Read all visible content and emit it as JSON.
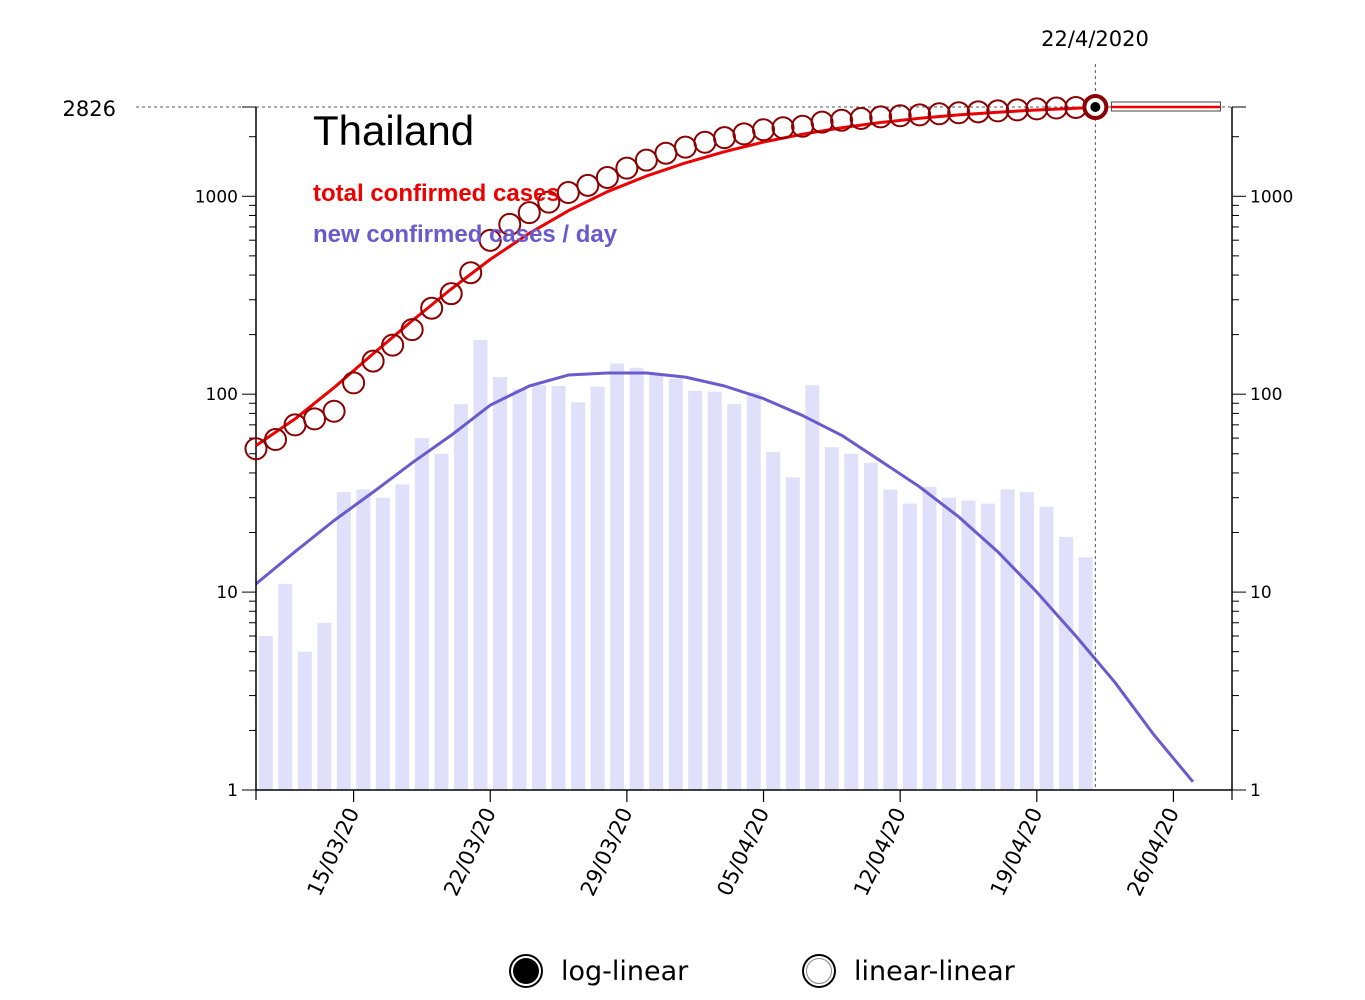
{
  "chart_data": {
    "type": "bar",
    "title": "Thailand",
    "legend": [
      {
        "label": "total confirmed cases",
        "color": "#ee0000"
      },
      {
        "label": "new confirmed cases / day",
        "color": "#6a5acd"
      }
    ],
    "y_scale": "log",
    "ylim": [
      1,
      2826
    ],
    "y_ticks": [
      "1",
      "10",
      "100",
      "1000"
    ],
    "x_tick_labels": [
      "15/03/20",
      "22/03/20",
      "29/03/20",
      "05/04/20",
      "12/04/20",
      "19/04/20",
      "26/04/20"
    ],
    "x_tick_dates": [
      "2020-03-15",
      "2020-03-22",
      "2020-03-29",
      "2020-04-05",
      "2020-04-12",
      "2020-04-19",
      "2020-04-26"
    ],
    "xlim": [
      "2020-03-10",
      "2020-04-29"
    ],
    "marker_date_label": "22/4/2020",
    "marker_date": "2020-04-22",
    "marker_value_label": "2826",
    "marker_value": 2826,
    "series": [
      {
        "name": "total confirmed cases",
        "kind": "points",
        "color": "#8b0000",
        "x": [
          "2020-03-10",
          "2020-03-11",
          "2020-03-12",
          "2020-03-13",
          "2020-03-14",
          "2020-03-15",
          "2020-03-16",
          "2020-03-17",
          "2020-03-18",
          "2020-03-19",
          "2020-03-20",
          "2020-03-21",
          "2020-03-22",
          "2020-03-23",
          "2020-03-24",
          "2020-03-25",
          "2020-03-26",
          "2020-03-27",
          "2020-03-28",
          "2020-03-29",
          "2020-03-30",
          "2020-03-31",
          "2020-04-01",
          "2020-04-02",
          "2020-04-03",
          "2020-04-04",
          "2020-04-05",
          "2020-04-06",
          "2020-04-07",
          "2020-04-08",
          "2020-04-09",
          "2020-04-10",
          "2020-04-11",
          "2020-04-12",
          "2020-04-13",
          "2020-04-14",
          "2020-04-15",
          "2020-04-16",
          "2020-04-17",
          "2020-04-18",
          "2020-04-19",
          "2020-04-20",
          "2020-04-21",
          "2020-04-22"
        ],
        "values": [
          53,
          59,
          70,
          75,
          82,
          114,
          147,
          177,
          212,
          272,
          322,
          411,
          599,
          721,
          827,
          934,
          1045,
          1136,
          1245,
          1388,
          1524,
          1651,
          1771,
          1875,
          1978,
          2067,
          2169,
          2220,
          2258,
          2369,
          2423,
          2473,
          2518,
          2551,
          2579,
          2613,
          2643,
          2672,
          2700,
          2733,
          2765,
          2792,
          2811,
          2826
        ]
      },
      {
        "name": "total confirmed cases",
        "kind": "fit-line",
        "color": "#ee0000",
        "x": [
          "2020-03-10",
          "2020-03-12",
          "2020-03-14",
          "2020-03-16",
          "2020-03-18",
          "2020-03-20",
          "2020-03-22",
          "2020-03-24",
          "2020-03-26",
          "2020-03-28",
          "2020-03-30",
          "2020-04-01",
          "2020-04-03",
          "2020-04-05",
          "2020-04-07",
          "2020-04-09",
          "2020-04-11",
          "2020-04-13",
          "2020-04-15",
          "2020-04-17",
          "2020-04-19",
          "2020-04-21",
          "2020-04-22",
          "2020-04-28"
        ],
        "values": [
          55,
          75,
          108,
          160,
          235,
          340,
          480,
          650,
          845,
          1055,
          1265,
          1475,
          1680,
          1880,
          2060,
          2220,
          2360,
          2480,
          2580,
          2660,
          2730,
          2785,
          2810,
          2826
        ]
      },
      {
        "name": "new confirmed cases / day",
        "kind": "bars",
        "color": "#e0e0fa",
        "x": [
          "2020-03-11",
          "2020-03-12",
          "2020-03-13",
          "2020-03-14",
          "2020-03-15",
          "2020-03-16",
          "2020-03-17",
          "2020-03-18",
          "2020-03-19",
          "2020-03-20",
          "2020-03-21",
          "2020-03-22",
          "2020-03-23",
          "2020-03-24",
          "2020-03-25",
          "2020-03-26",
          "2020-03-27",
          "2020-03-28",
          "2020-03-29",
          "2020-03-30",
          "2020-03-31",
          "2020-04-01",
          "2020-04-02",
          "2020-04-03",
          "2020-04-04",
          "2020-04-05",
          "2020-04-06",
          "2020-04-07",
          "2020-04-08",
          "2020-04-09",
          "2020-04-10",
          "2020-04-11",
          "2020-04-12",
          "2020-04-13",
          "2020-04-14",
          "2020-04-15",
          "2020-04-16",
          "2020-04-17",
          "2020-04-18",
          "2020-04-19",
          "2020-04-20",
          "2020-04-21",
          "2020-04-22"
        ],
        "values": [
          6,
          11,
          5,
          7,
          32,
          33,
          30,
          35,
          60,
          50,
          89,
          188,
          122,
          106,
          111,
          110,
          91,
          109,
          143,
          136,
          127,
          120,
          104,
          103,
          89,
          102,
          51,
          38,
          111,
          54,
          50,
          45,
          33,
          28,
          34,
          30,
          29,
          28,
          33,
          32,
          27,
          19,
          15
        ]
      },
      {
        "name": "new confirmed cases / day",
        "kind": "fit-line",
        "color": "#6a5acd",
        "x": [
          "2020-03-10",
          "2020-03-12",
          "2020-03-14",
          "2020-03-16",
          "2020-03-18",
          "2020-03-20",
          "2020-03-22",
          "2020-03-24",
          "2020-03-26",
          "2020-03-28",
          "2020-03-30",
          "2020-04-01",
          "2020-04-03",
          "2020-04-05",
          "2020-04-07",
          "2020-04-09",
          "2020-04-11",
          "2020-04-13",
          "2020-04-15",
          "2020-04-17",
          "2020-04-19",
          "2020-04-21",
          "2020-04-23",
          "2020-04-25",
          "2020-04-27"
        ],
        "values": [
          11,
          16,
          23,
          32,
          45,
          62,
          88,
          110,
          125,
          128,
          128,
          122,
          110,
          95,
          78,
          62,
          46,
          34,
          24,
          16,
          10,
          6,
          3.5,
          1.9,
          1.1
        ]
      }
    ]
  },
  "controls": {
    "log_linear_label": "log-linear",
    "linear_linear_label": "linear-linear",
    "selected": "log-linear"
  }
}
